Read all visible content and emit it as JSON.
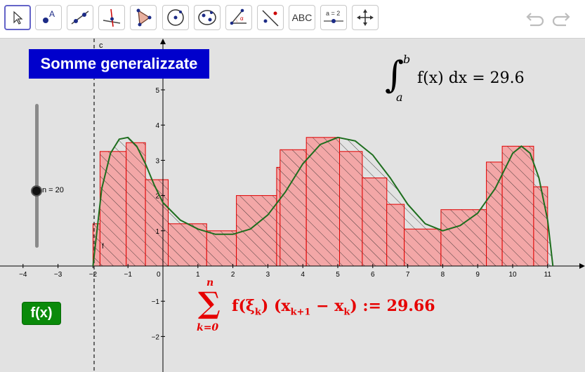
{
  "toolbar": {
    "tools": [
      {
        "id": "move",
        "icon": "arrow-cursor-icon"
      },
      {
        "id": "point",
        "icon": "point-icon",
        "label": "A"
      },
      {
        "id": "line",
        "icon": "line-icon"
      },
      {
        "id": "perpendicular",
        "icon": "perpendicular-line-icon"
      },
      {
        "id": "polygon",
        "icon": "polygon-icon"
      },
      {
        "id": "circle",
        "icon": "circle-icon"
      },
      {
        "id": "ellipse",
        "icon": "ellipse-icon"
      },
      {
        "id": "angle",
        "icon": "angle-icon"
      },
      {
        "id": "reflect",
        "icon": "reflect-icon"
      },
      {
        "id": "text",
        "icon": "text-icon",
        "label": "ABC"
      },
      {
        "id": "slider",
        "icon": "slider-icon",
        "label": "a = 2"
      },
      {
        "id": "move-view",
        "icon": "move-view-icon"
      }
    ],
    "undo_icon": "undo-icon",
    "redo_icon": "redo-icon"
  },
  "title": "Somme generalizzate",
  "slider": {
    "label": "n = 20",
    "value": 20
  },
  "fx_button": "f(x)",
  "integral": {
    "upper": "b",
    "lower": "a",
    "body": "f(x) dx = 29.6"
  },
  "sum": {
    "upper": "n",
    "lower": "k=0",
    "body": "f(ξ",
    "body_tail": ") (x",
    "sub_k1": "k+1",
    "minus": " − x",
    "sub_k": "k",
    "result": ") := 29.66"
  },
  "graph": {
    "x_ticks": [
      "−4",
      "−3",
      "−2",
      "−1",
      "0",
      "1",
      "2",
      "3",
      "4",
      "5",
      "6",
      "7",
      "8",
      "9",
      "10",
      "11"
    ],
    "y_ticks": [
      "5",
      "4",
      "3",
      "2",
      "1",
      "−1",
      "−2"
    ],
    "line_c_label": "c",
    "curve_label": "f",
    "colors": {
      "curve": "#1e6e1e",
      "bars_fill": "#f0a0a0",
      "bars_stroke": "#e00000",
      "axis": "#000000"
    },
    "function_points": [
      [
        -2,
        0
      ],
      [
        -1.75,
        2.2
      ],
      [
        -1.5,
        3.2
      ],
      [
        -1.25,
        3.6
      ],
      [
        -1,
        3.65
      ],
      [
        -0.75,
        3.4
      ],
      [
        -0.5,
        2.9
      ],
      [
        -0.25,
        2.3
      ],
      [
        0,
        1.8
      ],
      [
        0.5,
        1.3
      ],
      [
        1,
        1.05
      ],
      [
        1.5,
        0.9
      ],
      [
        2,
        0.9
      ],
      [
        2.5,
        1.05
      ],
      [
        3,
        1.45
      ],
      [
        3.5,
        2.1
      ],
      [
        4,
        2.9
      ],
      [
        4.5,
        3.45
      ],
      [
        5,
        3.65
      ],
      [
        5.5,
        3.55
      ],
      [
        6,
        3.15
      ],
      [
        6.5,
        2.5
      ],
      [
        7,
        1.75
      ],
      [
        7.5,
        1.2
      ],
      [
        8,
        1.0
      ],
      [
        8.5,
        1.15
      ],
      [
        9,
        1.5
      ],
      [
        9.5,
        2.2
      ],
      [
        10,
        3.2
      ],
      [
        10.25,
        3.4
      ],
      [
        10.5,
        3.2
      ],
      [
        10.75,
        2.5
      ],
      [
        11,
        1.3
      ],
      [
        11.15,
        0
      ]
    ],
    "rectangles": [
      {
        "x0": -2.0,
        "x1": -1.8,
        "h": 1.2
      },
      {
        "x0": -1.8,
        "x1": -1.05,
        "h": 3.25
      },
      {
        "x0": -1.05,
        "x1": -0.5,
        "h": 3.5
      },
      {
        "x0": -0.5,
        "x1": 0.15,
        "h": 2.45
      },
      {
        "x0": 0.15,
        "x1": 1.25,
        "h": 1.2
      },
      {
        "x0": 1.25,
        "x1": 2.1,
        "h": 1.0
      },
      {
        "x0": 2.1,
        "x1": 3.25,
        "h": 2.0
      },
      {
        "x0": 3.25,
        "x1": 3.35,
        "h": 2.8
      },
      {
        "x0": 3.35,
        "x1": 4.1,
        "h": 3.3
      },
      {
        "x0": 4.1,
        "x1": 5.05,
        "h": 3.65
      },
      {
        "x0": 5.05,
        "x1": 5.7,
        "h": 3.25
      },
      {
        "x0": 5.7,
        "x1": 6.4,
        "h": 2.5
      },
      {
        "x0": 6.4,
        "x1": 6.9,
        "h": 1.75
      },
      {
        "x0": 6.9,
        "x1": 7.95,
        "h": 1.05
      },
      {
        "x0": 7.95,
        "x1": 9.25,
        "h": 1.6
      },
      {
        "x0": 9.25,
        "x1": 9.7,
        "h": 2.95
      },
      {
        "x0": 9.7,
        "x1": 10.6,
        "h": 3.4
      },
      {
        "x0": 10.6,
        "x1": 11.0,
        "h": 2.25
      }
    ]
  }
}
